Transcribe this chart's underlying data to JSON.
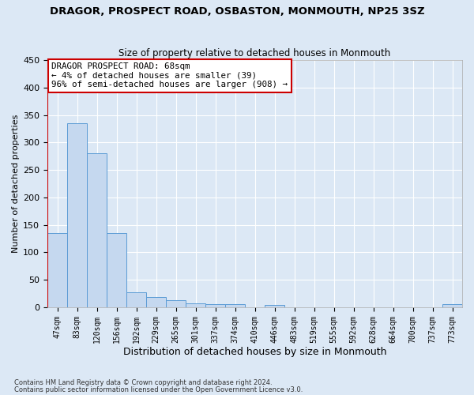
{
  "title": "DRAGOR, PROSPECT ROAD, OSBASTON, MONMOUTH, NP25 3SZ",
  "subtitle": "Size of property relative to detached houses in Monmouth",
  "xlabel": "Distribution of detached houses by size in Monmouth",
  "ylabel": "Number of detached properties",
  "bar_labels": [
    "47sqm",
    "83sqm",
    "120sqm",
    "156sqm",
    "192sqm",
    "229sqm",
    "265sqm",
    "301sqm",
    "337sqm",
    "374sqm",
    "410sqm",
    "446sqm",
    "483sqm",
    "519sqm",
    "555sqm",
    "592sqm",
    "628sqm",
    "664sqm",
    "700sqm",
    "737sqm",
    "773sqm"
  ],
  "bar_values": [
    135,
    335,
    280,
    135,
    28,
    18,
    13,
    7,
    6,
    6,
    0,
    4,
    0,
    0,
    0,
    0,
    0,
    0,
    0,
    0,
    6
  ],
  "bar_color": "#c5d8ef",
  "bar_edge_color": "#5b9bd5",
  "highlight_line_color": "#cc0000",
  "ylim_max": 450,
  "yticks": [
    0,
    50,
    100,
    150,
    200,
    250,
    300,
    350,
    400,
    450
  ],
  "annotation_title": "DRAGOR PROSPECT ROAD: 68sqm",
  "annotation_line1": "← 4% of detached houses are smaller (39)",
  "annotation_line2": "96% of semi-detached houses are larger (908) →",
  "footer_line1": "Contains HM Land Registry data © Crown copyright and database right 2024.",
  "footer_line2": "Contains public sector information licensed under the Open Government Licence v3.0.",
  "bg_color": "#dce8f5",
  "grid_color": "#ffffff"
}
